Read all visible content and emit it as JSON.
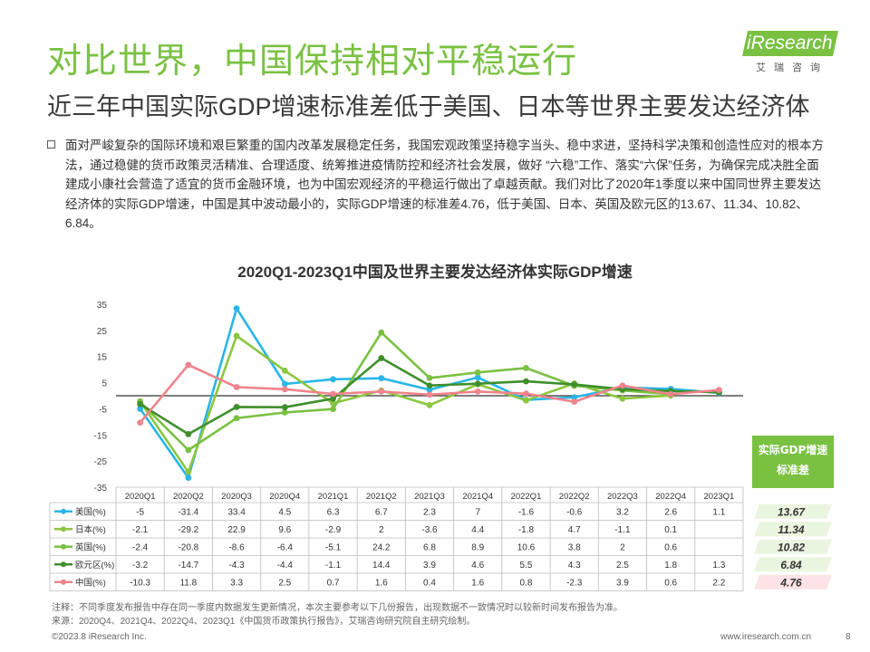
{
  "page": {
    "title": "对比世界，中国保持相对平稳运行",
    "subtitle": "近三年中国实际GDP增速标准差低于美国、日本等世界主要发达经济体",
    "body_text": "面对严峻复杂的国际环境和艰巨繁重的国内改革发展稳定任务，我国宏观政策坚持稳字当头、稳中求进，坚持科学决策和创造性应对的根本方法，通过稳健的货币政策灵活精准、合理适度、统筹推进疫情防控和经济社会发展，做好 “六稳”工作、落实“六保”任务，为确保完成决胜全面建成小康社会营造了适宜的货币金融环境，也为中国宏观经济的平稳运行做出了卓越贡献。我们对比了2020年1季度以来中国同世界主要发达经济体的实际GDP增速，中国是其中波动最小的，实际GDP增速的标准差4.76，低于美国、日本、英国及欧元区的13.67、11.34、10.82、6.84。",
    "note": "注释：不同季度发布报告中存在同一季度内数据发生更新情况，本次主要参考以下几份报告，出现数据不一致情况时以较新时间发布报告为准。",
    "source": "来源：2020Q4、2021Q4、2022Q4、2023Q1《中国货币政策执行报告》，艾瑞咨询研究院自主研究绘制。",
    "copyright": "©2023.8 iResearch Inc.",
    "website": "www.iresearch.com.cn",
    "page_number": "8"
  },
  "logo": {
    "text": "iResearch",
    "sub": "艾瑞咨询"
  },
  "colors": {
    "accent": "#7ac142",
    "us": "#29b6e8",
    "japan": "#8cc63f",
    "uk": "#7ac142",
    "euro": "#3f8f2c",
    "china": "#f0838b",
    "sd_header": "#7ac142"
  },
  "chart_data": {
    "type": "line",
    "title": "2020Q1-2023Q1中国及世界主要发达经济体实际GDP增速",
    "categories": [
      "2020Q1",
      "2020Q2",
      "2020Q3",
      "2020Q4",
      "2021Q1",
      "2021Q2",
      "2021Q3",
      "2021Q4",
      "2022Q1",
      "2022Q2",
      "2022Q3",
      "2022Q4",
      "2023Q1"
    ],
    "yticks": [
      35,
      25,
      15,
      5,
      -5,
      -15,
      -25,
      -35
    ],
    "ylim": [
      -35,
      35
    ],
    "series": [
      {
        "name": "美国(%)",
        "color": "#29b6e8",
        "values": [
          -5,
          -31.4,
          33.4,
          4.5,
          6.3,
          6.7,
          2.3,
          7,
          -1.6,
          -0.6,
          3.2,
          2.6,
          1.1
        ]
      },
      {
        "name": "日本(%)",
        "color": "#8cc63f",
        "values": [
          -2.1,
          -29.2,
          22.9,
          9.6,
          -2.9,
          2,
          -3.6,
          4.4,
          -1.8,
          4.7,
          -1.1,
          0.1,
          null
        ]
      },
      {
        "name": "英国(%)",
        "color": "#7ac142",
        "values": [
          -2.4,
          -20.8,
          -8.6,
          -6.4,
          -5.1,
          24.2,
          6.8,
          8.9,
          10.6,
          3.8,
          2,
          0.6,
          null
        ]
      },
      {
        "name": "欧元区(%)",
        "color": "#3f8f2c",
        "values": [
          -3.2,
          -14.7,
          -4.3,
          -4.4,
          -1.1,
          14.4,
          3.9,
          4.6,
          5.5,
          4.3,
          2.5,
          1.8,
          1.3
        ]
      },
      {
        "name": "中国(%)",
        "color": "#f0838b",
        "values": [
          -10.3,
          11.8,
          3.3,
          2.5,
          0.7,
          1.6,
          0.4,
          1.6,
          0.8,
          -2.3,
          3.9,
          0.6,
          2.2
        ]
      }
    ],
    "table_values": [
      [
        "-5",
        "-31.4",
        "33.4",
        "4.5",
        "6.3",
        "6.7",
        "2.3",
        "7",
        "-1.6",
        "-0.6",
        "3.2",
        "2.6",
        "1.1"
      ],
      [
        "-2.1",
        "-29.2",
        "22.9",
        "9.6",
        "-2.9",
        "2",
        "-3.6",
        "4.4",
        "-1.8",
        "4.7",
        "-1.1",
        "0.1",
        ""
      ],
      [
        "-2.4",
        "-20.8",
        "-8.6",
        "-6.4",
        "-5.1",
        "24.2",
        "6.8",
        "8.9",
        "10.6",
        "3.8",
        "2",
        "0.6",
        ""
      ],
      [
        "-3.2",
        "-14.7",
        "-4.3",
        "-4.4",
        "-1.1",
        "14.4",
        "3.9",
        "4.6",
        "5.5",
        "4.3",
        "2.5",
        "1.8",
        "1.3"
      ],
      [
        "-10.3",
        "11.8",
        "3.3",
        "2.5",
        "0.7",
        "1.6",
        "0.4",
        "1.6",
        "0.8",
        "-2.3",
        "3.9",
        "0.6",
        "2.2"
      ]
    ],
    "std_header": "实际GDP增速标准差",
    "std_header_lines": [
      "实际GDP增速",
      "标准差"
    ],
    "std_values": [
      "13.67",
      "11.34",
      "10.82",
      "6.84",
      "4.76"
    ]
  }
}
